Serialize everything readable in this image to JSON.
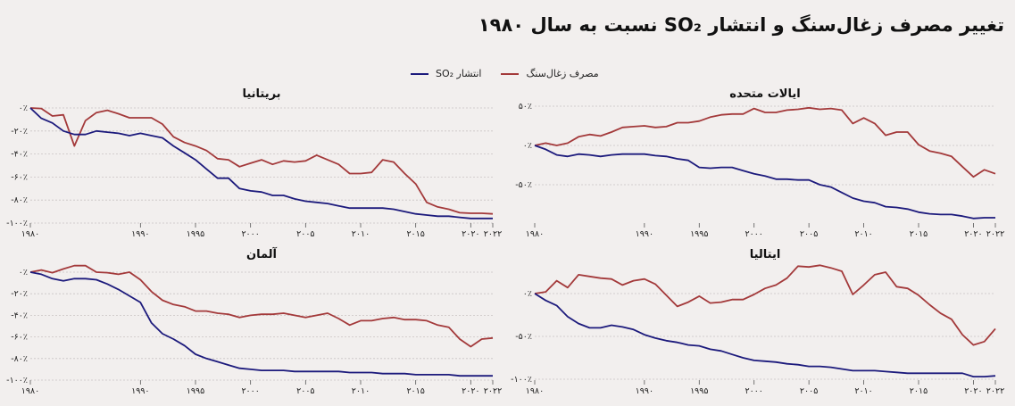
{
  "title": "تغییر مصرف زغال‌سنگ و انتشار SO₂ نسبت به سال ۱۹۸۰",
  "legend": [
    {
      "label": "مصرف زغال‌سنگ",
      "color": "#a3393a"
    },
    {
      "label": "انتشار SO₂",
      "color": "#1c1a7c"
    }
  ],
  "colors": {
    "coal": "#a3393a",
    "so2": "#1c1a7c",
    "grid": "#c9c4c3",
    "background": "#f2efee"
  },
  "chart_data": [
    {
      "type": "line",
      "title": "بریتانیا",
      "x": [
        1980,
        1981,
        1982,
        1983,
        1984,
        1985,
        1986,
        1987,
        1988,
        1989,
        1990,
        1991,
        1992,
        1993,
        1994,
        1995,
        1996,
        1997,
        1998,
        1999,
        2000,
        2001,
        2002,
        2003,
        2004,
        2005,
        2006,
        2007,
        2008,
        2009,
        2010,
        2011,
        2012,
        2013,
        2014,
        2015,
        2016,
        2017,
        2018,
        2019,
        2020,
        2021,
        2022
      ],
      "xticks": [
        1980,
        1990,
        1995,
        2000,
        2005,
        2010,
        2015,
        2020,
        2022
      ],
      "xtick_labels": [
        "۱۹۸۰",
        "۱۹۹۰",
        "۱۹۹۵",
        "۲۰۰۰",
        "۲۰۰۵",
        "۲۰۱۰",
        "۲۰۱۵",
        "۲۰۲۰",
        "۲۰۲۲"
      ],
      "yticks": [
        0,
        -20,
        -40,
        -60,
        -80,
        -100
      ],
      "ytick_labels": [
        "۰٪",
        "-۲۰٪",
        "-۴۰٪",
        "-۶۰٪",
        "-۸۰٪",
        "-۱۰۰٪"
      ],
      "ylim": [
        -100,
        0
      ],
      "series": [
        {
          "name": "مصرف زغال‌سنگ",
          "values": [
            0,
            -0.5,
            -7,
            -6,
            -33,
            -11,
            -4,
            -2,
            -5,
            -8.5,
            -8.5,
            -8.5,
            -14,
            -25,
            -30,
            -33,
            -37,
            -44,
            -45,
            -51,
            -48,
            -45,
            -49,
            -46,
            -47,
            -46,
            -41,
            -45,
            -49,
            -57,
            -57,
            -56,
            -45,
            -47,
            -57,
            -66,
            -82,
            -86,
            -88,
            -91,
            -91.5,
            -91.5,
            -92
          ]
        },
        {
          "name": "انتشار SO₂",
          "values": [
            0,
            -9,
            -13,
            -20,
            -23,
            -23,
            -20,
            -21,
            -22,
            -24,
            -22,
            -24,
            -26,
            -33,
            -39,
            -45,
            -53,
            -61,
            -61,
            -70,
            -72,
            -73,
            -76,
            -76,
            -79,
            -81,
            -82,
            -83,
            -85,
            -87,
            -87,
            -87,
            -87,
            -88,
            -90,
            -92,
            -93,
            -94,
            -94,
            -95,
            -96,
            -96,
            -96
          ]
        }
      ]
    },
    {
      "type": "line",
      "title": "ایالات متحده",
      "x": [
        1980,
        1981,
        1982,
        1983,
        1984,
        1985,
        1986,
        1987,
        1988,
        1989,
        1990,
        1991,
        1992,
        1993,
        1994,
        1995,
        1996,
        1997,
        1998,
        1999,
        2000,
        2001,
        2002,
        2003,
        2004,
        2005,
        2006,
        2007,
        2008,
        2009,
        2010,
        2011,
        2012,
        2013,
        2014,
        2015,
        2016,
        2017,
        2018,
        2019,
        2020,
        2021,
        2022
      ],
      "xticks": [
        1980,
        1990,
        1995,
        2000,
        2005,
        2010,
        2015,
        2020,
        2022
      ],
      "xtick_labels": [
        "۱۹۸۰",
        "۱۹۹۰",
        "۱۹۹۵",
        "۲۰۰۰",
        "۲۰۰۵",
        "۲۰۱۰",
        "۲۰۱۵",
        "۲۰۲۰",
        "۲۰۲۲"
      ],
      "yticks": [
        50,
        0,
        -50
      ],
      "ytick_labels": [
        "۵۰٪",
        "۰٪",
        "-۵۰٪"
      ],
      "ylim": [
        -100,
        50
      ],
      "series": [
        {
          "name": "مصرف زغال‌سنگ",
          "values": [
            0,
            3,
            0,
            3,
            11,
            14,
            12,
            17,
            23,
            24,
            25,
            23,
            24,
            29,
            29,
            31,
            36,
            39,
            40,
            40,
            47,
            42,
            42,
            45,
            46,
            48,
            46,
            47,
            45,
            28,
            35,
            28,
            13,
            17,
            17,
            1,
            -7,
            -10,
            -14,
            -27,
            -40,
            -31,
            -36
          ]
        },
        {
          "name": "انتشار SO₂",
          "values": [
            0,
            -5,
            -12,
            -14,
            -11,
            -12,
            -14,
            -12,
            -11,
            -11,
            -11,
            -13,
            -14,
            -17,
            -19,
            -28,
            -29,
            -28,
            -28,
            -32,
            -36,
            -39,
            -43,
            -43,
            -44,
            -44,
            -50,
            -53,
            -60,
            -67,
            -71,
            -73,
            -78,
            -79,
            -81,
            -85,
            -87,
            -88,
            -88,
            -90,
            -93,
            -92,
            -92
          ]
        }
      ]
    },
    {
      "type": "line",
      "title": "آلمان",
      "x": [
        1980,
        1981,
        1982,
        1983,
        1984,
        1985,
        1986,
        1987,
        1988,
        1989,
        1990,
        1991,
        1992,
        1993,
        1994,
        1995,
        1996,
        1997,
        1998,
        1999,
        2000,
        2001,
        2002,
        2003,
        2004,
        2005,
        2006,
        2007,
        2008,
        2009,
        2010,
        2011,
        2012,
        2013,
        2014,
        2015,
        2016,
        2017,
        2018,
        2019,
        2020,
        2021,
        2022
      ],
      "xticks": [
        1980,
        1990,
        1995,
        2000,
        2005,
        2010,
        2015,
        2020,
        2022
      ],
      "xtick_labels": [
        "۱۹۸۰",
        "۱۹۹۰",
        "۱۹۹۵",
        "۲۰۰۰",
        "۲۰۰۵",
        "۲۰۱۰",
        "۲۰۱۵",
        "۲۰۲۰",
        "۲۰۲۲"
      ],
      "yticks": [
        0,
        -20,
        -40,
        -60,
        -80,
        -100
      ],
      "ytick_labels": [
        "۰٪",
        "-۲۰٪",
        "-۴۰٪",
        "-۶۰٪",
        "-۸۰٪",
        "-۱۰۰٪"
      ],
      "ylim": [
        -100,
        0
      ],
      "series": [
        {
          "name": "مصرف زغال‌سنگ",
          "values": [
            0,
            2,
            -0.5,
            3,
            6,
            6,
            0,
            -0.5,
            -2,
            0,
            -7,
            -18,
            -26,
            -30,
            -32,
            -36,
            -36,
            -38,
            -39,
            -42,
            -40,
            -39,
            -39,
            -38,
            -40,
            -42,
            -40,
            -38,
            -43,
            -49,
            -45,
            -45,
            -43,
            -42,
            -44,
            -44,
            -45,
            -49,
            -51,
            -62,
            -69,
            -62,
            -61
          ]
        },
        {
          "name": "انتشار SO₂",
          "values": [
            0,
            -2,
            -6,
            -8,
            -6,
            -6,
            -7,
            -11,
            -16,
            -22,
            -28,
            -47,
            -57,
            -62,
            -68,
            -76,
            -80,
            -83,
            -86,
            -89,
            -90,
            -91,
            -91,
            -91,
            -92,
            -92,
            -92,
            -92,
            -92,
            -93,
            -93,
            -93,
            -94,
            -94,
            -94,
            -95,
            -95,
            -95,
            -95,
            -96,
            -96,
            -96,
            -96
          ]
        }
      ]
    },
    {
      "type": "line",
      "title": "ایتالیا",
      "x": [
        1980,
        1981,
        1982,
        1983,
        1984,
        1985,
        1986,
        1987,
        1988,
        1989,
        1990,
        1991,
        1992,
        1993,
        1994,
        1995,
        1996,
        1997,
        1998,
        1999,
        2000,
        2001,
        2002,
        2003,
        2004,
        2005,
        2006,
        2007,
        2008,
        2009,
        2010,
        2011,
        2012,
        2013,
        2014,
        2015,
        2016,
        2017,
        2018,
        2019,
        2020,
        2021,
        2022
      ],
      "xticks": [
        1980,
        1990,
        1995,
        2000,
        2005,
        2010,
        2015,
        2020,
        2022
      ],
      "xtick_labels": [
        "۱۹۸۰",
        "۱۹۹۰",
        "۱۹۹۵",
        "۲۰۰۰",
        "۲۰۰۵",
        "۲۰۱۰",
        "۲۰۱۵",
        "۲۰۲۰",
        "۲۰۲۲"
      ],
      "yticks": [
        0,
        -50,
        -100
      ],
      "ytick_labels": [
        "۰٪",
        "-۵۰٪",
        "-۱۰۰٪"
      ],
      "ylim": [
        -100,
        35
      ],
      "series": [
        {
          "name": "مصرف زغال‌سنگ",
          "values": [
            0,
            2,
            15,
            7,
            22,
            20,
            18,
            17,
            10,
            15,
            17,
            11,
            -2,
            -15,
            -10,
            -3,
            -11,
            -10,
            -7,
            -7,
            -1,
            6,
            10,
            18,
            32,
            31,
            33,
            30,
            26,
            -1,
            10,
            22,
            25,
            8,
            6,
            -2,
            -13,
            -23,
            -30,
            -48,
            -60,
            -56,
            -41
          ]
        },
        {
          "name": "انتشار SO₂",
          "values": [
            0,
            -8,
            -14,
            -27,
            -35,
            -40,
            -40,
            -37,
            -39,
            -42,
            -48,
            -52,
            -55,
            -57,
            -60,
            -61,
            -65,
            -67,
            -71,
            -75,
            -78,
            -79,
            -80,
            -82,
            -83,
            -85,
            -85,
            -86,
            -88,
            -90,
            -90,
            -90,
            -91,
            -92,
            -93,
            -93,
            -93,
            -93,
            -93,
            -93,
            -97,
            -97,
            -96
          ]
        }
      ]
    }
  ]
}
